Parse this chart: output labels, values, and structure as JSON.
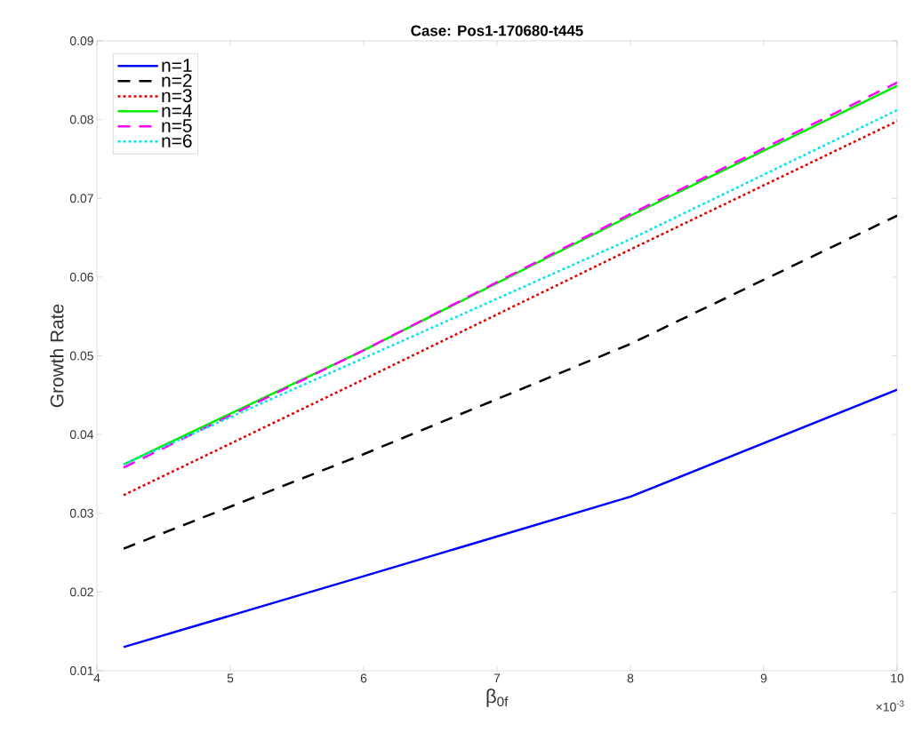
{
  "chart_data": {
    "type": "line",
    "title": "Case: Pos1-170680-t445",
    "xlabel": "β$_{0f}$",
    "ylabel": "Growth Rate",
    "x": [
      4.2,
      6,
      8,
      10
    ],
    "series": [
      {
        "name": "n=1",
        "color": "#0000ff",
        "line_style": "solid",
        "values": [
          0.013,
          0.022,
          0.0321,
          0.0457
        ]
      },
      {
        "name": "n=2",
        "color": "#000000",
        "line_style": "dashed",
        "values": [
          0.0255,
          0.0375,
          0.0515,
          0.0678
        ]
      },
      {
        "name": "n=3",
        "color": "#e00000",
        "line_style": "dotted",
        "values": [
          0.0323,
          0.047,
          0.0635,
          0.0798
        ]
      },
      {
        "name": "n=4",
        "color": "#00ee00",
        "line_style": "solid",
        "values": [
          0.0362,
          0.0507,
          0.0678,
          0.0843
        ]
      },
      {
        "name": "n=5",
        "color": "#ff00ff",
        "line_style": "dashed",
        "values": [
          0.0358,
          0.0507,
          0.068,
          0.0847
        ]
      },
      {
        "name": "n=6",
        "color": "#00e5ee",
        "line_style": "dotted",
        "values": [
          0.0362,
          0.0497,
          0.0648,
          0.0812
        ]
      }
    ],
    "xlim": [
      4,
      10
    ],
    "xticks": [
      4,
      5,
      6,
      7,
      8,
      9,
      10
    ],
    "ylim": [
      0.01,
      0.09
    ],
    "yticks": [
      0.01,
      0.02,
      0.03,
      0.04,
      0.05,
      0.06,
      0.07,
      0.08,
      0.09
    ],
    "annotations": [
      "×10$^{-3}$"
    ],
    "legend": "top left",
    "grid": false,
    "marker": "none"
  }
}
